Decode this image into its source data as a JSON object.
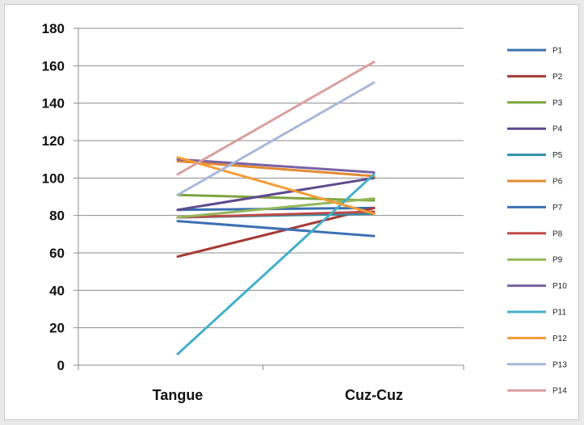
{
  "chart_data": {
    "type": "line",
    "categories": [
      "Tangue",
      "Cuz-Cuz"
    ],
    "ylim": [
      0,
      180
    ],
    "yticks": [
      0,
      20,
      40,
      60,
      80,
      100,
      120,
      140,
      160,
      180
    ],
    "grid": true,
    "legend_position": "right",
    "series": [
      {
        "name": "P1",
        "color": "#3a6fb0",
        "values": [
          83,
          84
        ]
      },
      {
        "name": "P2",
        "color": "#a33a35",
        "values": [
          58,
          84
        ]
      },
      {
        "name": "P3",
        "color": "#7ea340",
        "values": [
          91,
          88
        ]
      },
      {
        "name": "P4",
        "color": "#5e4a8c",
        "values": [
          83,
          100
        ]
      },
      {
        "name": "P5",
        "color": "#2f8fa8",
        "values": [
          79,
          81
        ]
      },
      {
        "name": "P6",
        "color": "#e28a33",
        "values": [
          109,
          101
        ]
      },
      {
        "name": "P7",
        "color": "#3d70b3",
        "values": [
          77,
          69
        ]
      },
      {
        "name": "P8",
        "color": "#bd4b48",
        "values": [
          79,
          82
        ]
      },
      {
        "name": "P9",
        "color": "#93b75a",
        "values": [
          79,
          89
        ]
      },
      {
        "name": "P10",
        "color": "#7a62a3",
        "values": [
          110,
          103
        ]
      },
      {
        "name": "P11",
        "color": "#45afc9",
        "values": [
          6,
          102
        ]
      },
      {
        "name": "P12",
        "color": "#f59b35",
        "values": [
          111,
          81
        ]
      },
      {
        "name": "P13",
        "color": "#a9b8d9",
        "values": [
          91,
          151
        ]
      },
      {
        "name": "P14",
        "color": "#d9a0a0",
        "values": [
          102,
          162
        ]
      }
    ]
  }
}
